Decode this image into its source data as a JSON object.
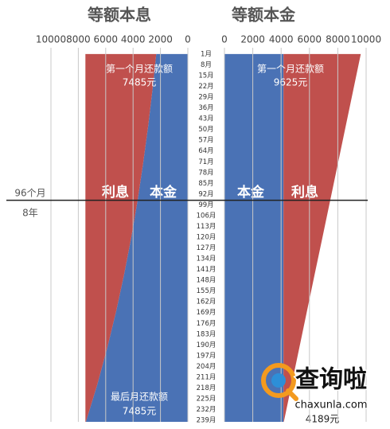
{
  "chart_data": [
    {
      "type": "area",
      "title": "等额本息",
      "x_reversed": true,
      "x": [
        1,
        24,
        48,
        72,
        96,
        120,
        144,
        168,
        192,
        216,
        240
      ],
      "series": [
        {
          "name": "本金",
          "color": "#4a72b5",
          "values": [
            2310,
            2580,
            2900,
            3270,
            3670,
            4130,
            4650,
            5230,
            5890,
            6620,
            7450
          ]
        },
        {
          "name": "利息",
          "color": "#c0504d",
          "values": [
            5175,
            4905,
            4585,
            4215,
            3815,
            3355,
            2835,
            2255,
            1595,
            865,
            35
          ]
        }
      ],
      "xlim": [
        0,
        10000
      ],
      "xticks": [
        0,
        2000,
        4000,
        6000,
        8000,
        10000
      ],
      "ylim": [
        0,
        240
      ],
      "grid": true,
      "annotations": [
        "第一个月还款额",
        "7485元",
        "最后月还款额",
        "7485元"
      ]
    },
    {
      "type": "area",
      "title": "等额本金",
      "x_reversed": false,
      "x": [
        1,
        24,
        48,
        72,
        96,
        120,
        144,
        168,
        192,
        216,
        240
      ],
      "series": [
        {
          "name": "本金",
          "color": "#4a72b5",
          "values": [
            4167,
            4167,
            4167,
            4167,
            4167,
            4167,
            4167,
            4167,
            4167,
            4167,
            4167
          ]
        },
        {
          "name": "利息",
          "color": "#c0504d",
          "values": [
            5458,
            4935,
            4389,
            3843,
            3297,
            2752,
            2206,
            1660,
            1114,
            568,
            22
          ]
        }
      ],
      "xlim": [
        0,
        10000
      ],
      "xticks": [
        0,
        2000,
        4000,
        6000,
        8000,
        10000
      ],
      "ylim": [
        0,
        240
      ],
      "grid": true,
      "annotations": [
        "第一个月还款额",
        "9625元",
        "4189元"
      ]
    }
  ],
  "month_axis": {
    "ticks": [
      {
        "value": 1,
        "label": "1月"
      },
      {
        "value": 8,
        "label": "8月"
      },
      {
        "value": 15,
        "label": "15月"
      },
      {
        "value": 22,
        "label": "22月"
      },
      {
        "value": 29,
        "label": "29月"
      },
      {
        "value": 36,
        "label": "36月"
      },
      {
        "value": 43,
        "label": "43月"
      },
      {
        "value": 50,
        "label": "50月"
      },
      {
        "value": 57,
        "label": "57月"
      },
      {
        "value": 64,
        "label": "64月"
      },
      {
        "value": 71,
        "label": "71月"
      },
      {
        "value": 78,
        "label": "78月"
      },
      {
        "value": 85,
        "label": "85月"
      },
      {
        "value": 92,
        "label": "92月"
      },
      {
        "value": 99,
        "label": "99月"
      },
      {
        "value": 106,
        "label": "106月"
      },
      {
        "value": 113,
        "label": "113月"
      },
      {
        "value": 120,
        "label": "120月"
      },
      {
        "value": 127,
        "label": "127月"
      },
      {
        "value": 134,
        "label": "134月"
      },
      {
        "value": 141,
        "label": "141月"
      },
      {
        "value": 148,
        "label": "148月"
      },
      {
        "value": 155,
        "label": "155月"
      },
      {
        "value": 162,
        "label": "162月"
      },
      {
        "value": 169,
        "label": "169月"
      },
      {
        "value": 176,
        "label": "176月"
      },
      {
        "value": 183,
        "label": "183月"
      },
      {
        "value": 190,
        "label": "190月"
      },
      {
        "value": 197,
        "label": "197月"
      },
      {
        "value": 204,
        "label": "204月"
      },
      {
        "value": 211,
        "label": "211月"
      },
      {
        "value": 218,
        "label": "218月"
      },
      {
        "value": 225,
        "label": "225月"
      },
      {
        "value": 232,
        "label": "232月"
      },
      {
        "value": 239,
        "label": "239月"
      }
    ]
  },
  "divider": {
    "month": 96,
    "label": "96个月",
    "sublabel": "8年"
  },
  "watermark": {
    "title": "查询啦",
    "url": "chaxunla.com"
  }
}
